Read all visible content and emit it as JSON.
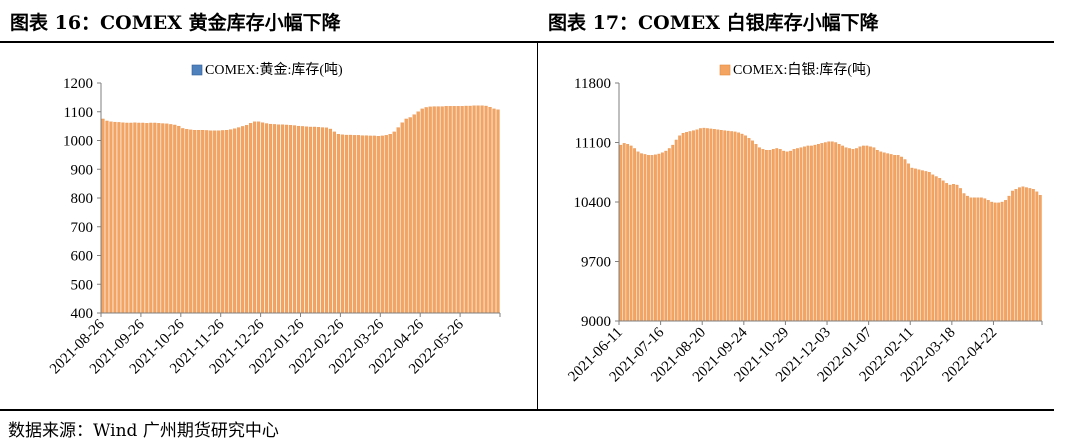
{
  "panels": {
    "left_title": "图表 16：COMEX 黄金库存小幅下降",
    "right_title": "图表 17：COMEX 白银库存小幅下降"
  },
  "source": "数据来源：Wind 广州期货研究中心",
  "chart_data": [
    {
      "type": "bar",
      "legend": "COMEX:黄金:库存(吨)",
      "legend_position": "top",
      "color": "#F4A462",
      "edge_color": "#E58A3F",
      "ylim": [
        400,
        1200
      ],
      "yticks": [
        400,
        500,
        600,
        700,
        800,
        900,
        1000,
        1100,
        1200
      ],
      "xticks": [
        "2021-08-26",
        "2021-09-26",
        "2021-10-26",
        "2021-11-26",
        "2021-12-26",
        "2022-01-26",
        "2022-02-26",
        "2022-03-26",
        "2022-04-26",
        "2022-05-26"
      ],
      "grid": false,
      "series": [
        {
          "values": [
            1075,
            1068,
            1065,
            1064,
            1063,
            1062,
            1061,
            1061,
            1062,
            1061,
            1061,
            1060,
            1061,
            1061,
            1060,
            1059,
            1058,
            1056,
            1054,
            1050,
            1042,
            1039,
            1037,
            1036,
            1036,
            1036,
            1035,
            1034,
            1034,
            1034,
            1035,
            1036,
            1038,
            1041,
            1045,
            1049,
            1053,
            1060,
            1065,
            1065,
            1062,
            1059,
            1057,
            1056,
            1055,
            1055,
            1054,
            1053,
            1052,
            1050,
            1049,
            1048,
            1047,
            1047,
            1046,
            1045,
            1044,
            1040,
            1030,
            1022,
            1020,
            1019,
            1019,
            1018,
            1018,
            1017,
            1017,
            1016,
            1016,
            1015,
            1016,
            1018,
            1022,
            1030,
            1045,
            1062,
            1075,
            1080,
            1090,
            1100,
            1110,
            1115,
            1117,
            1118,
            1118,
            1118,
            1119,
            1119,
            1119,
            1119,
            1119,
            1120,
            1120,
            1121,
            1121,
            1121,
            1120,
            1116,
            1110,
            1107
          ]
        }
      ]
    },
    {
      "type": "bar",
      "legend": "COMEX:白银:库存(吨)",
      "legend_position": "top",
      "color": "#F4A462",
      "edge_color": "#E58A3F",
      "ylim": [
        9000,
        11800
      ],
      "yticks": [
        9000,
        9700,
        10400,
        11100,
        11800
      ],
      "xticks": [
        "2021-06-11",
        "2021-07-16",
        "2021-08-20",
        "2021-09-24",
        "2021-10-29",
        "2021-12-03",
        "2022-01-07",
        "2022-02-11",
        "2022-03-18",
        "2022-04-22"
      ],
      "grid": false,
      "series": [
        {
          "values": [
            11070,
            11090,
            11080,
            11060,
            11030,
            10990,
            10970,
            10960,
            10950,
            10950,
            10955,
            10965,
            10980,
            11000,
            11030,
            11070,
            11130,
            11180,
            11210,
            11220,
            11230,
            11240,
            11250,
            11265,
            11270,
            11265,
            11260,
            11255,
            11250,
            11245,
            11240,
            11235,
            11230,
            11225,
            11215,
            11200,
            11180,
            11150,
            11120,
            11080,
            11040,
            11020,
            11010,
            11010,
            11020,
            11030,
            11020,
            11000,
            10990,
            11000,
            11020,
            11030,
            11040,
            11050,
            11060,
            11060,
            11070,
            11080,
            11090,
            11100,
            11110,
            11110,
            11100,
            11080,
            11060,
            11040,
            11030,
            11020,
            11030,
            11050,
            11060,
            11060,
            11050,
            11040,
            11010,
            10990,
            10980,
            10970,
            10960,
            10950,
            10950,
            10930,
            10900,
            10850,
            10800,
            10790,
            10780,
            10770,
            10760,
            10750,
            10720,
            10700,
            10680,
            10650,
            10620,
            10600,
            10610,
            10600,
            10560,
            10500,
            10470,
            10450,
            10450,
            10450,
            10450,
            10440,
            10420,
            10400,
            10390,
            10390,
            10400,
            10420,
            10470,
            10530,
            10550,
            10570,
            10580,
            10570,
            10560,
            10550,
            10520,
            10480
          ]
        }
      ]
    }
  ]
}
